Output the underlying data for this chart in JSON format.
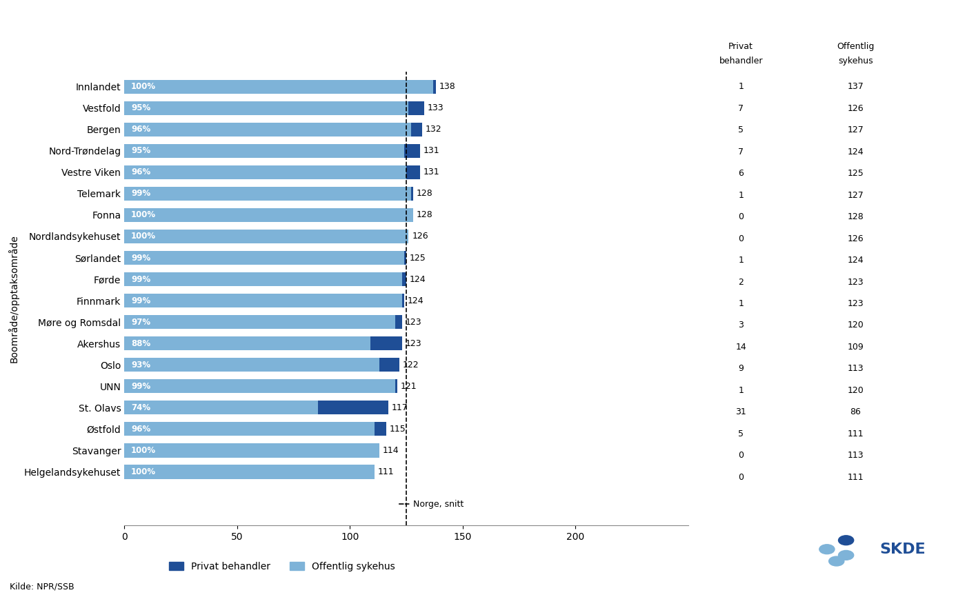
{
  "categories": [
    "Helgelandsykehuset",
    "Stavanger",
    "Østfold",
    "St. Olavs",
    "UNN",
    "Oslo",
    "Akershus",
    "Møre og Romsdal",
    "Finnmark",
    "Førde",
    "Sørlandet",
    "Nordlandsykehuset",
    "Fonna",
    "Telemark",
    "Vestre Viken",
    "Nord-Trøndelag",
    "Bergen",
    "Vestfold",
    "Innlandet"
  ],
  "public": [
    111,
    113,
    111,
    86,
    120,
    113,
    109,
    120,
    123,
    123,
    124,
    126,
    128,
    127,
    125,
    124,
    127,
    126,
    137
  ],
  "private": [
    0,
    0,
    5,
    31,
    1,
    9,
    14,
    3,
    1,
    2,
    1,
    0,
    0,
    1,
    6,
    7,
    5,
    7,
    1
  ],
  "total": [
    111,
    114,
    115,
    117,
    121,
    122,
    123,
    123,
    124,
    124,
    125,
    126,
    128,
    128,
    131,
    131,
    132,
    133,
    138
  ],
  "pct_public": [
    "100%",
    "100%",
    "96%",
    "74%",
    "99%",
    "93%",
    "88%",
    "97%",
    "99%",
    "99%",
    "99%",
    "100%",
    "100%",
    "99%",
    "96%",
    "95%",
    "96%",
    "95%",
    "100%"
  ],
  "color_public": "#7EB3D8",
  "color_private": "#1F4E96",
  "norge_snitt": 125,
  "ylabel": "Boområde/opptaksområde",
  "legend_private": "Privat behandler",
  "legend_public": "Offentlig sykehus",
  "source": "Kilde: NPR/SSB",
  "norge_label": "Norge, snitt",
  "background_color": "#FFFFFF"
}
